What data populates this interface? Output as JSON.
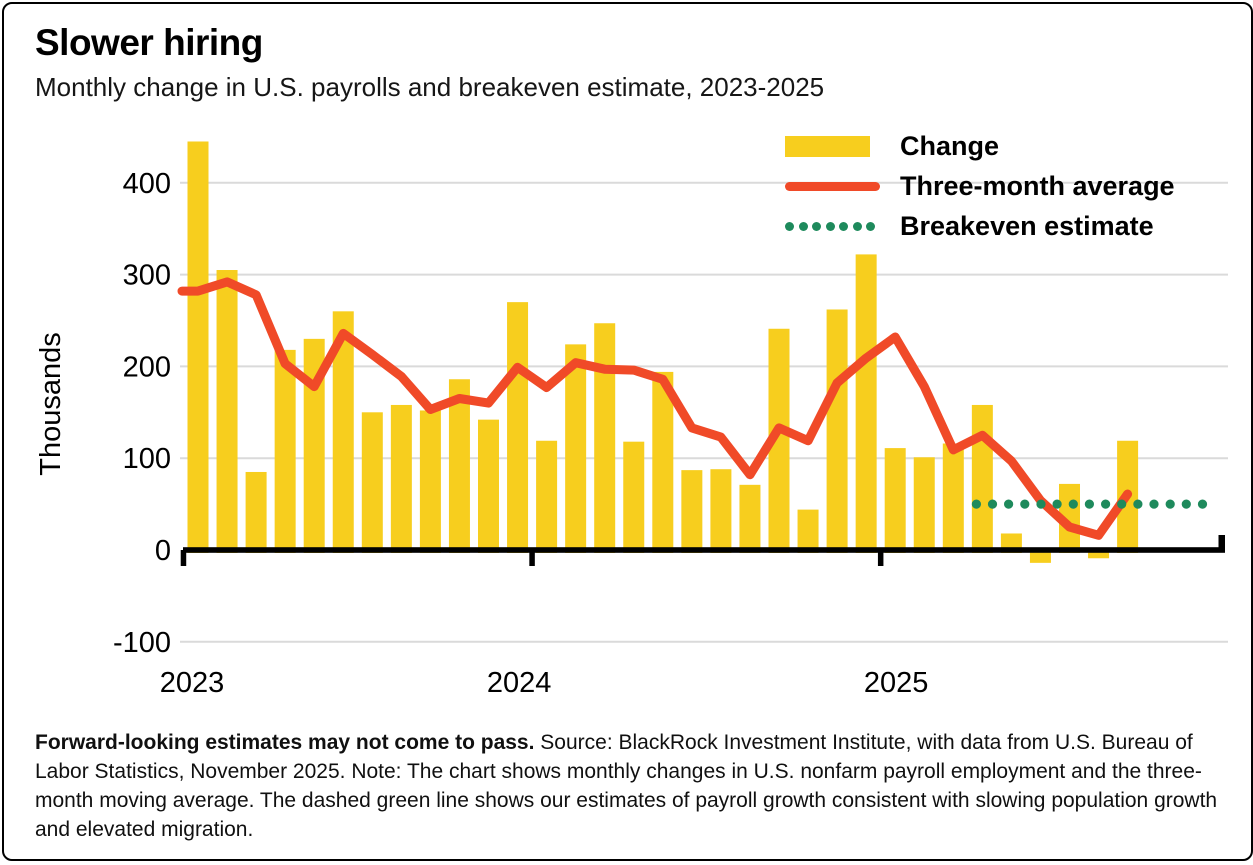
{
  "header": {
    "title": "Slower hiring",
    "subtitle": "Monthly change in U.S. payrolls and breakeven estimate, 2023-2025"
  },
  "legend": [
    {
      "label": "Change",
      "type": "bar",
      "color": "#F7CE1E"
    },
    {
      "label": "Three-month average",
      "type": "line",
      "color": "#F04A28"
    },
    {
      "label": "Breakeven estimate",
      "type": "dotted",
      "color": "#1E8A5C"
    }
  ],
  "chart_data": {
    "type": "bar+line",
    "title": "Slower hiring",
    "subtitle": "Monthly change in U.S. payrolls and breakeven estimate, 2023-2025",
    "xlabel": "",
    "ylabel": "Thousands",
    "yticks": [
      400,
      300,
      200,
      100,
      0,
      -100
    ],
    "ylim": [
      -130,
      470
    ],
    "grid": true,
    "legend_position": "top-right",
    "categories": [
      "2023-01",
      "2023-02",
      "2023-03",
      "2023-04",
      "2023-05",
      "2023-06",
      "2023-07",
      "2023-08",
      "2023-09",
      "2023-10",
      "2023-11",
      "2023-12",
      "2024-01",
      "2024-02",
      "2024-03",
      "2024-04",
      "2024-05",
      "2024-06",
      "2024-07",
      "2024-08",
      "2024-09",
      "2024-10",
      "2024-11",
      "2024-12",
      "2025-01",
      "2025-02",
      "2025-03",
      "2025-04",
      "2025-05",
      "2025-06",
      "2025-07",
      "2025-08",
      "2025-09"
    ],
    "year_ticks": [
      {
        "label": "2023",
        "start_month": "2023-01"
      },
      {
        "label": "2024",
        "start_month": "2024-01"
      },
      {
        "label": "2025",
        "start_month": "2025-01"
      }
    ],
    "series": [
      {
        "name": "Change",
        "type": "bar",
        "color": "#F7CE1E",
        "values": [
          445,
          305,
          85,
          218,
          230,
          260,
          150,
          158,
          152,
          186,
          142,
          270,
          119,
          224,
          247,
          118,
          194,
          87,
          88,
          71,
          241,
          44,
          262,
          322,
          111,
          101,
          116,
          158,
          18,
          -14,
          72,
          -9,
          119
        ]
      },
      {
        "name": "Three-month average",
        "type": "line",
        "color": "#F04A28",
        "values": [
          282,
          292,
          278,
          203,
          178,
          236,
          213,
          189,
          153,
          165,
          160,
          199,
          177,
          204,
          197,
          196,
          186,
          133,
          123,
          82,
          133,
          119,
          182,
          209,
          232,
          178,
          109,
          125,
          97,
          54,
          25,
          16,
          61
        ]
      },
      {
        "name": "Breakeven estimate",
        "type": "dotted-line",
        "color": "#1E8A5C",
        "value": 50,
        "from_month": "2025-04",
        "extends_beyond_data": true
      }
    ]
  },
  "footnote": {
    "bold": "Forward-looking estimates may not come to pass.",
    "rest": " Source: BlackRock Investment Institute, with data from U.S. Bureau of Labor Statistics, November 2025. Note: The chart shows monthly changes in U.S. nonfarm payroll employment and the three-month moving average. The dashed green line shows our estimates of payroll growth consistent with slowing population growth and elevated migration."
  }
}
